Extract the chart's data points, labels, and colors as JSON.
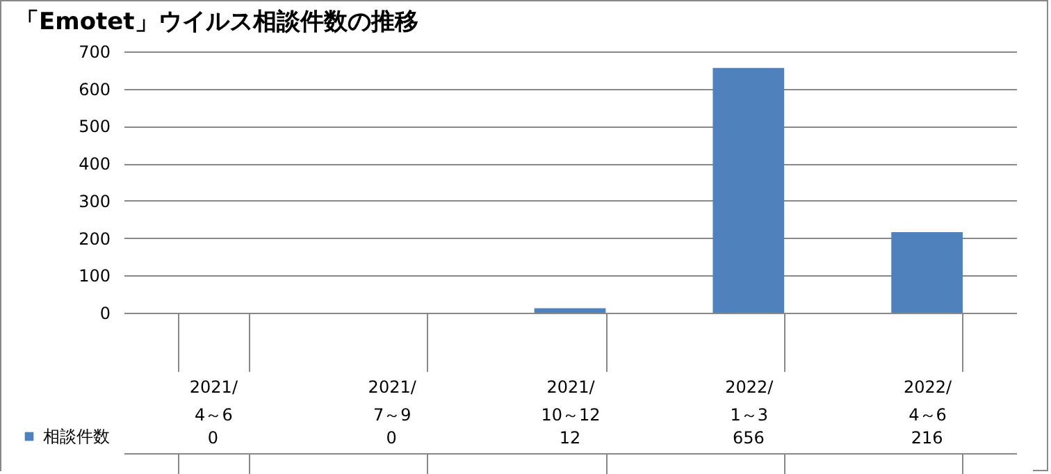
{
  "chart_data": {
    "type": "bar",
    "title": "「Emotet」ウイルス相談件数の推移",
    "categories": [
      "2021/\n4～6",
      "2021/\n7～9",
      "2021/\n10～12",
      "2022/\n1～3",
      "2022/\n4～6"
    ],
    "series": [
      {
        "name": "相談件数",
        "color": "#4f81bd",
        "values": [
          0,
          0,
          12,
          656,
          216
        ]
      }
    ],
    "ylim": [
      0,
      700
    ],
    "yticks": [
      0,
      100,
      200,
      300,
      400,
      500,
      600,
      700
    ],
    "grid": "y",
    "data_labels": true,
    "legend": "bottom left"
  }
}
